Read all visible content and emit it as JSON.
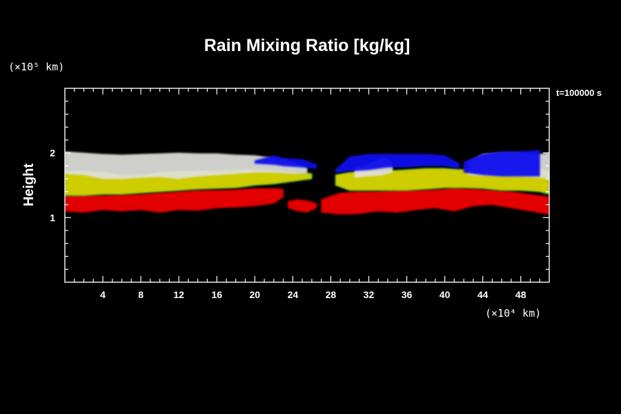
{
  "chart_data": {
    "type": "heatmap",
    "title": "Rain Mixing Ratio [kg/kg]",
    "ylabel": "Height",
    "yunit": "(×10⁵ km)",
    "xunit": "(×10⁴ km)",
    "time_label": "t=100000 s",
    "xlim": [
      0,
      51
    ],
    "ylim": [
      0,
      3
    ],
    "x_ticks": [
      4,
      8,
      12,
      16,
      20,
      24,
      28,
      32,
      36,
      40,
      44,
      48
    ],
    "y_ticks": [
      1,
      2
    ],
    "x_minor_step": 1,
    "y_minor_step": 0.2,
    "colors": {
      "background": "#000000",
      "low": "#ee0000",
      "mid": "#d8d800",
      "high": "#e0e0dc",
      "edge": "#1010ee",
      "fringe": "#30e030"
    },
    "regions": [
      {
        "name": "cloud-red-west",
        "level": "low",
        "x": [
          0,
          2,
          4,
          6,
          8,
          10,
          12,
          14,
          16,
          18,
          20,
          22,
          23,
          23
        ],
        "top": [
          1.33,
          1.34,
          1.34,
          1.35,
          1.36,
          1.38,
          1.4,
          1.42,
          1.42,
          1.43,
          1.45,
          1.45,
          1.44,
          1.4
        ],
        "bottom": [
          1.1,
          1.08,
          1.12,
          1.1,
          1.12,
          1.08,
          1.12,
          1.11,
          1.15,
          1.16,
          1.18,
          1.22,
          1.32,
          1.4
        ]
      },
      {
        "name": "cloud-red-patch-24",
        "level": "low",
        "x": [
          23.5,
          24.5,
          25.5,
          26.5,
          26.5
        ],
        "top": [
          1.25,
          1.28,
          1.26,
          1.22,
          1.22
        ],
        "bottom": [
          1.15,
          1.1,
          1.08,
          1.15,
          1.22
        ]
      },
      {
        "name": "cloud-red-east",
        "level": "low",
        "x": [
          27,
          29,
          31,
          33,
          35,
          37,
          39,
          41,
          43,
          45,
          47,
          49,
          51
        ],
        "top": [
          1.28,
          1.38,
          1.4,
          1.4,
          1.42,
          1.42,
          1.43,
          1.45,
          1.44,
          1.42,
          1.4,
          1.36,
          1.32
        ],
        "bottom": [
          1.08,
          1.05,
          1.06,
          1.1,
          1.08,
          1.12,
          1.15,
          1.1,
          1.18,
          1.2,
          1.15,
          1.1,
          1.05
        ]
      },
      {
        "name": "cloud-yellow-west",
        "level": "mid",
        "x": [
          0,
          2,
          4,
          6,
          8,
          10,
          12,
          14,
          16,
          18,
          20,
          22,
          24,
          26
        ],
        "top": [
          1.72,
          1.72,
          1.7,
          1.66,
          1.66,
          1.7,
          1.72,
          1.72,
          1.72,
          1.74,
          1.74,
          1.72,
          1.7,
          1.68
        ],
        "bottom": [
          1.34,
          1.34,
          1.36,
          1.36,
          1.38,
          1.4,
          1.42,
          1.44,
          1.45,
          1.46,
          1.5,
          1.52,
          1.56,
          1.6
        ]
      },
      {
        "name": "cloud-yellow-east",
        "level": "mid",
        "x": [
          28.5,
          30,
          32,
          34,
          36,
          38,
          40,
          42,
          44,
          46,
          48,
          50,
          51
        ],
        "top": [
          1.66,
          1.7,
          1.72,
          1.72,
          1.74,
          1.76,
          1.76,
          1.74,
          1.74,
          1.74,
          1.74,
          1.74,
          1.72
        ],
        "bottom": [
          1.5,
          1.42,
          1.42,
          1.42,
          1.42,
          1.44,
          1.46,
          1.46,
          1.45,
          1.42,
          1.42,
          1.4,
          1.36
        ]
      },
      {
        "name": "cloud-white-west",
        "level": "high",
        "x": [
          0,
          2,
          4,
          6,
          8,
          10,
          12,
          14,
          16,
          18,
          20,
          22,
          24,
          25.5
        ],
        "top": [
          2.02,
          2.0,
          1.98,
          1.97,
          1.98,
          1.99,
          2.0,
          1.99,
          1.99,
          1.97,
          1.96,
          1.92,
          1.86,
          1.78
        ],
        "bottom": [
          1.68,
          1.66,
          1.6,
          1.6,
          1.62,
          1.63,
          1.6,
          1.64,
          1.66,
          1.68,
          1.7,
          1.7,
          1.68,
          1.68
        ]
      },
      {
        "name": "cloud-white-east",
        "level": "high",
        "x": [
          42.5,
          44,
          46,
          48,
          50,
          51
        ],
        "top": [
          1.86,
          1.98,
          2.0,
          2.0,
          1.98,
          2.0
        ],
        "bottom": [
          1.66,
          1.65,
          1.65,
          1.64,
          1.62,
          1.6
        ]
      },
      {
        "name": "cloud-white-center",
        "level": "high",
        "x": [
          30.5,
          32,
          33.5,
          34.5
        ],
        "top": [
          1.76,
          1.82,
          1.94,
          1.84
        ],
        "bottom": [
          1.62,
          1.64,
          1.66,
          1.7
        ]
      },
      {
        "name": "cloud-blue-west",
        "level": "edge",
        "x": [
          20,
          22,
          23,
          25,
          26.5
        ],
        "top": [
          1.88,
          1.96,
          1.92,
          1.9,
          1.82
        ],
        "bottom": [
          1.84,
          1.82,
          1.8,
          1.78,
          1.76
        ]
      },
      {
        "name": "cloud-blue-center",
        "level": "edge",
        "x": [
          28.5,
          30,
          32,
          34,
          36,
          38,
          40,
          41.5
        ],
        "top": [
          1.74,
          1.94,
          1.98,
          1.98,
          1.98,
          1.98,
          1.96,
          1.84
        ],
        "bottom": [
          1.7,
          1.72,
          1.74,
          1.78,
          1.78,
          1.8,
          1.8,
          1.76
        ]
      },
      {
        "name": "cloud-blue-east",
        "level": "edge",
        "x": [
          42,
          44,
          46,
          48,
          50
        ],
        "top": [
          1.86,
          1.98,
          2.02,
          2.02,
          2.04
        ],
        "bottom": [
          1.7,
          1.66,
          1.64,
          1.64,
          1.64
        ]
      }
    ]
  }
}
